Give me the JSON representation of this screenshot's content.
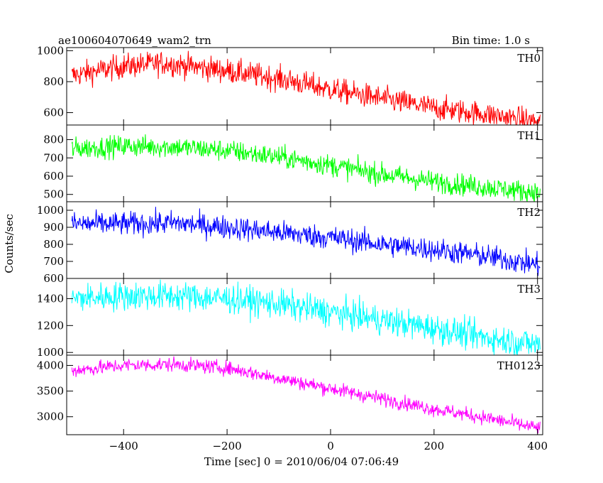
{
  "header": {
    "title": "ae100604070649_wam2_trn",
    "bin_time": "Bin time: 1.0 s"
  },
  "axes": {
    "xlabel": "Time [sec] 0 = 2010/06/04 07:06:49",
    "ylabel": "Counts/sec"
  },
  "chart_data": {
    "type": "line",
    "xlim": [
      -510,
      410
    ],
    "x_ticks": [
      -400,
      -200,
      0,
      200,
      400
    ],
    "x_step": 1,
    "panels": [
      {
        "name": "TH0",
        "color": "#ff0000",
        "ylim": [
          520,
          1020
        ],
        "y_ticks": [
          600,
          800,
          1000
        ],
        "trend": [
          [
            -500,
            840
          ],
          [
            -400,
            900
          ],
          [
            -320,
            920
          ],
          [
            -200,
            870
          ],
          [
            -100,
            820
          ],
          [
            0,
            750
          ],
          [
            100,
            690
          ],
          [
            200,
            630
          ],
          [
            300,
            590
          ],
          [
            400,
            540
          ]
        ],
        "noise": 40
      },
      {
        "name": "TH1",
        "color": "#00ff00",
        "ylim": [
          460,
          880
        ],
        "y_ticks": [
          500,
          600,
          700,
          800
        ],
        "trend": [
          [
            -500,
            750
          ],
          [
            -400,
            765
          ],
          [
            -300,
            760
          ],
          [
            -200,
            740
          ],
          [
            -100,
            705
          ],
          [
            0,
            660
          ],
          [
            100,
            610
          ],
          [
            200,
            570
          ],
          [
            300,
            540
          ],
          [
            400,
            510
          ]
        ],
        "noise": 30
      },
      {
        "name": "TH2",
        "color": "#0000ff",
        "ylim": [
          600,
          1050
        ],
        "y_ticks": [
          600,
          700,
          800,
          900,
          1000
        ],
        "trend": [
          [
            -500,
            920
          ],
          [
            -400,
            920
          ],
          [
            -300,
            925
          ],
          [
            -200,
            900
          ],
          [
            -100,
            870
          ],
          [
            0,
            840
          ],
          [
            100,
            800
          ],
          [
            200,
            770
          ],
          [
            300,
            730
          ],
          [
            400,
            680
          ]
        ],
        "noise": 35
      },
      {
        "name": "TH3",
        "color": "#00ffff",
        "ylim": [
          980,
          1550
        ],
        "y_ticks": [
          1000,
          1200,
          1400
        ],
        "trend": [
          [
            -500,
            1400
          ],
          [
            -400,
            1420
          ],
          [
            -300,
            1420
          ],
          [
            -200,
            1400
          ],
          [
            -100,
            1360
          ],
          [
            0,
            1300
          ],
          [
            100,
            1240
          ],
          [
            200,
            1180
          ],
          [
            300,
            1110
          ],
          [
            400,
            1060
          ]
        ],
        "noise": 55
      },
      {
        "name": "TH0123",
        "color": "#ff00ff",
        "ylim": [
          2650,
          4200
        ],
        "y_ticks": [
          3000,
          3500,
          4000
        ],
        "trend": [
          [
            -500,
            3900
          ],
          [
            -400,
            4000
          ],
          [
            -300,
            4020
          ],
          [
            -200,
            3950
          ],
          [
            -100,
            3750
          ],
          [
            0,
            3550
          ],
          [
            100,
            3350
          ],
          [
            200,
            3150
          ],
          [
            300,
            2980
          ],
          [
            400,
            2780
          ]
        ],
        "noise": 70
      }
    ]
  }
}
